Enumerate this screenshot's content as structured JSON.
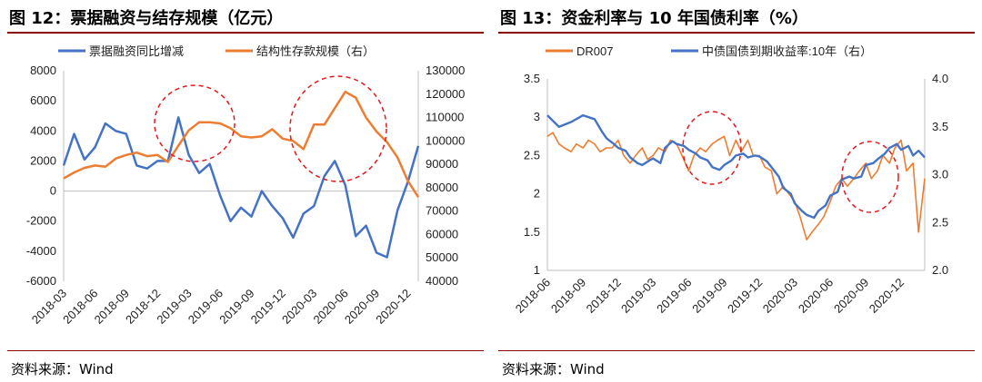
{
  "colors": {
    "blue": "#4472c4",
    "orange": "#ed7d31",
    "rule": "#8a0000",
    "circle": "#e0191b"
  },
  "chart_data": [
    {
      "type": "line",
      "title": "图 12：票据融资与结存规模（亿元）",
      "source": "资料来源：Wind",
      "x": [
        "2018-03",
        "2018-04",
        "2018-05",
        "2018-06",
        "2018-07",
        "2018-08",
        "2018-09",
        "2018-10",
        "2018-11",
        "2018-12",
        "2019-01",
        "2019-02",
        "2019-03",
        "2019-04",
        "2019-05",
        "2019-06",
        "2019-07",
        "2019-08",
        "2019-09",
        "2019-10",
        "2019-11",
        "2019-12",
        "2020-01",
        "2020-02",
        "2020-03",
        "2020-04",
        "2020-05",
        "2020-06",
        "2020-07",
        "2020-08",
        "2020-09",
        "2020-10",
        "2020-11",
        "2020-12",
        "2021-01"
      ],
      "xticks": [
        "2018-03",
        "2018-06",
        "2018-09",
        "2018-12",
        "2019-03",
        "2019-06",
        "2019-09",
        "2019-12",
        "2020-03",
        "2020-06",
        "2020-09",
        "2020-12"
      ],
      "y_left": {
        "min": -6000,
        "max": 8000,
        "ticks": [
          "-6000",
          "-4000",
          "-2000",
          "0",
          "2000",
          "4000",
          "6000",
          "8000"
        ]
      },
      "y_right": {
        "min": 40000,
        "max": 130000,
        "ticks": [
          "40000",
          "50000",
          "60000",
          "70000",
          "80000",
          "90000",
          "100000",
          "110000",
          "120000",
          "130000"
        ]
      },
      "series": [
        {
          "name": "票据融资同比增减",
          "axis": "left",
          "color": "#4472c4",
          "values": [
            1700,
            3800,
            2100,
            2900,
            4500,
            4000,
            3800,
            1700,
            1500,
            2000,
            2000,
            4900,
            2400,
            1200,
            1800,
            -300,
            -2000,
            -1100,
            -1700,
            0,
            -1000,
            -1800,
            -3100,
            -1500,
            -1000,
            1000,
            2000,
            400,
            -3000,
            -2300,
            -4100,
            -4400,
            -1300,
            600,
            3000
          ]
        },
        {
          "name": "结构性存款规模（右）",
          "axis": "right",
          "color": "#ed7d31",
          "values": [
            84000,
            86500,
            88500,
            89500,
            89000,
            92500,
            94000,
            95000,
            93500,
            94000,
            91000,
            98000,
            104500,
            108000,
            108000,
            107500,
            105500,
            102000,
            101500,
            102000,
            105000,
            101000,
            100000,
            96500,
            107000,
            107000,
            114000,
            121000,
            118500,
            110000,
            104000,
            99500,
            93000,
            83000,
            76000
          ]
        }
      ],
      "annotations": [
        {
          "shape": "dashed-ellipse",
          "around": "2019-01~2019-06"
        },
        {
          "shape": "dashed-ellipse",
          "around": "2020-03~2020-09"
        }
      ]
    },
    {
      "type": "line",
      "title": "图 13：资金利率与 10 年国债利率（%）",
      "source": "资料来源：Wind",
      "x_start": "2018-06",
      "x_end": "2021-01",
      "xticks": [
        "2018-06",
        "2018-09",
        "2018-12",
        "2019-03",
        "2019-06",
        "2019-09",
        "2019-12",
        "2020-03",
        "2020-06",
        "2020-09",
        "2020-12"
      ],
      "y_left": {
        "min": 1,
        "max": 3.5,
        "ticks": [
          "1",
          "1.5",
          "2",
          "2.5",
          "3",
          "3.5"
        ]
      },
      "y_right": {
        "min": 2.0,
        "max": 4.0,
        "ticks": [
          "2.0",
          "2.5",
          "3.0",
          "3.5",
          "4.0"
        ]
      },
      "series": [
        {
          "name": "DR007",
          "axis": "left",
          "color": "#ed7d31",
          "dates": [
            "2018-06-01",
            "2018-06-15",
            "2018-07-01",
            "2018-07-15",
            "2018-08-01",
            "2018-08-15",
            "2018-09-01",
            "2018-09-15",
            "2018-10-01",
            "2018-10-15",
            "2018-11-01",
            "2018-11-15",
            "2018-12-01",
            "2018-12-15",
            "2019-01-01",
            "2019-01-15",
            "2019-02-01",
            "2019-02-15",
            "2019-03-01",
            "2019-03-15",
            "2019-04-01",
            "2019-04-15",
            "2019-05-01",
            "2019-05-15",
            "2019-06-01",
            "2019-06-15",
            "2019-07-01",
            "2019-07-15",
            "2019-08-01",
            "2019-08-15",
            "2019-09-01",
            "2019-09-15",
            "2019-10-01",
            "2019-10-15",
            "2019-11-01",
            "2019-11-15",
            "2019-12-01",
            "2019-12-15",
            "2020-01-01",
            "2020-01-15",
            "2020-02-01",
            "2020-02-15",
            "2020-03-01",
            "2020-03-15",
            "2020-04-01",
            "2020-04-15",
            "2020-05-01",
            "2020-05-15",
            "2020-06-01",
            "2020-06-15",
            "2020-07-01",
            "2020-07-15",
            "2020-08-01",
            "2020-08-15",
            "2020-09-01",
            "2020-09-15",
            "2020-10-01",
            "2020-10-15",
            "2020-11-01",
            "2020-11-15",
            "2020-12-01",
            "2020-12-15",
            "2021-01-01",
            "2021-01-15",
            "2021-01-31"
          ],
          "values": [
            2.75,
            2.8,
            2.65,
            2.6,
            2.55,
            2.65,
            2.6,
            2.7,
            2.65,
            2.55,
            2.6,
            2.6,
            2.7,
            2.5,
            2.4,
            2.5,
            2.6,
            2.45,
            2.5,
            2.6,
            2.55,
            2.7,
            2.65,
            2.5,
            2.3,
            2.5,
            2.6,
            2.55,
            2.65,
            2.7,
            2.75,
            2.5,
            2.7,
            2.55,
            2.7,
            2.5,
            2.5,
            2.35,
            2.3,
            2.0,
            2.1,
            2.0,
            1.9,
            1.7,
            1.4,
            1.5,
            1.6,
            1.7,
            1.9,
            2.1,
            2.2,
            2.1,
            2.2,
            2.3,
            2.4,
            2.2,
            2.3,
            2.5,
            2.4,
            2.6,
            2.7,
            2.3,
            2.4,
            1.5,
            2.2
          ]
        },
        {
          "name": "中债国债到期收益率:10年（右）",
          "axis": "right",
          "color": "#4472c4",
          "dates": [
            "2018-06-01",
            "2018-07-01",
            "2018-08-01",
            "2018-09-01",
            "2018-10-01",
            "2018-10-20",
            "2018-11-01",
            "2018-11-20",
            "2018-12-01",
            "2018-12-20",
            "2019-01-01",
            "2019-01-20",
            "2019-02-01",
            "2019-02-20",
            "2019-03-01",
            "2019-03-20",
            "2019-04-01",
            "2019-04-20",
            "2019-05-01",
            "2019-05-20",
            "2019-06-01",
            "2019-06-20",
            "2019-07-01",
            "2019-07-20",
            "2019-08-01",
            "2019-08-20",
            "2019-09-01",
            "2019-09-20",
            "2019-10-01",
            "2019-10-20",
            "2019-11-01",
            "2019-11-20",
            "2019-12-01",
            "2019-12-20",
            "2020-01-01",
            "2020-01-20",
            "2020-02-01",
            "2020-02-20",
            "2020-03-01",
            "2020-03-20",
            "2020-04-01",
            "2020-04-20",
            "2020-05-01",
            "2020-05-20",
            "2020-06-01",
            "2020-06-20",
            "2020-07-01",
            "2020-07-20",
            "2020-08-01",
            "2020-08-20",
            "2020-09-01",
            "2020-09-20",
            "2020-10-01",
            "2020-10-20",
            "2020-11-01",
            "2020-11-20",
            "2020-12-01",
            "2020-12-20",
            "2021-01-01",
            "2021-01-15",
            "2021-01-31"
          ],
          "values": [
            3.62,
            3.5,
            3.55,
            3.62,
            3.58,
            3.45,
            3.38,
            3.32,
            3.28,
            3.25,
            3.18,
            3.12,
            3.1,
            3.15,
            3.17,
            3.12,
            3.28,
            3.35,
            3.32,
            3.3,
            3.26,
            3.22,
            3.18,
            3.15,
            3.08,
            3.05,
            3.1,
            3.15,
            3.2,
            3.22,
            3.18,
            3.2,
            3.19,
            3.14,
            3.08,
            2.98,
            2.86,
            2.8,
            2.7,
            2.62,
            2.58,
            2.55,
            2.62,
            2.68,
            2.78,
            2.82,
            2.95,
            2.98,
            2.96,
            2.98,
            3.1,
            3.12,
            3.16,
            3.22,
            3.28,
            3.32,
            3.26,
            3.3,
            3.2,
            3.25,
            3.18
          ]
        }
      ],
      "annotations": [
        {
          "shape": "dashed-ellipse",
          "around": "2019-05~2019-09"
        },
        {
          "shape": "dashed-ellipse",
          "around": "2020-08~2020-10"
        }
      ]
    }
  ]
}
